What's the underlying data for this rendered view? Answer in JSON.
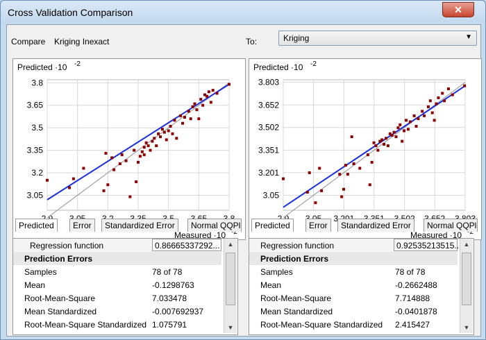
{
  "window": {
    "title": "Cross Validation Comparison",
    "close_label": "✕"
  },
  "compare": {
    "label": "Compare",
    "value": "Kriging Inexact"
  },
  "to": {
    "label": "To:",
    "value": "Kriging"
  },
  "tabs": [
    "Predicted",
    "Error",
    "Standardized Error",
    "Normal QQPlot"
  ],
  "colors": {
    "points": "#8b0000",
    "regression": "#1a2ee0",
    "reference": "#a0a0a0",
    "accent": "#6d8fb5"
  },
  "chart_data": [
    {
      "type": "scatter",
      "ylabel": "Predicted ·10",
      "ylabel_exp": "-2",
      "xlabel": "Measured ·10",
      "xlabel_exp": "-2",
      "xticks": [
        "2.9",
        "3.05",
        "3.2",
        "3.35",
        "3.5",
        "3.65",
        "3.8"
      ],
      "yticks": [
        "3.05",
        "3.2",
        "3.35",
        "3.5",
        "3.65",
        "3.8"
      ],
      "xlim": [
        2.9,
        3.8
      ],
      "ylim": [
        2.95,
        3.82
      ],
      "regression": {
        "x": [
          2.9,
          3.8
        ],
        "y": [
          3.02,
          3.79
        ]
      },
      "points": [
        [
          2.9,
          3.15
        ],
        [
          3.01,
          3.1
        ],
        [
          3.03,
          3.16
        ],
        [
          3.08,
          3.23
        ],
        [
          3.18,
          3.08
        ],
        [
          3.19,
          3.33
        ],
        [
          3.2,
          3.12
        ],
        [
          3.22,
          3.3
        ],
        [
          3.23,
          3.22
        ],
        [
          3.26,
          3.26
        ],
        [
          3.27,
          3.32
        ],
        [
          3.29,
          3.28
        ],
        [
          3.31,
          3.04
        ],
        [
          3.33,
          3.35
        ],
        [
          3.34,
          3.14
        ],
        [
          3.35,
          3.27
        ],
        [
          3.36,
          3.31
        ],
        [
          3.37,
          3.34
        ],
        [
          3.38,
          3.37
        ],
        [
          3.38,
          3.32
        ],
        [
          3.39,
          3.4
        ],
        [
          3.4,
          3.38
        ],
        [
          3.41,
          3.35
        ],
        [
          3.42,
          3.41
        ],
        [
          3.43,
          3.43
        ],
        [
          3.44,
          3.38
        ],
        [
          3.45,
          3.46
        ],
        [
          3.46,
          3.44
        ],
        [
          3.47,
          3.49
        ],
        [
          3.48,
          3.47
        ],
        [
          3.49,
          3.42
        ],
        [
          3.5,
          3.48
        ],
        [
          3.51,
          3.51
        ],
        [
          3.52,
          3.46
        ],
        [
          3.53,
          3.55
        ],
        [
          3.54,
          3.43
        ],
        [
          3.56,
          3.58
        ],
        [
          3.57,
          3.53
        ],
        [
          3.58,
          3.57
        ],
        [
          3.6,
          3.61
        ],
        [
          3.61,
          3.56
        ],
        [
          3.62,
          3.64
        ],
        [
          3.63,
          3.66
        ],
        [
          3.64,
          3.62
        ],
        [
          3.65,
          3.56
        ],
        [
          3.66,
          3.69
        ],
        [
          3.67,
          3.65
        ],
        [
          3.68,
          3.72
        ],
        [
          3.69,
          3.71
        ],
        [
          3.7,
          3.74
        ],
        [
          3.71,
          3.67
        ],
        [
          3.72,
          3.75
        ],
        [
          3.74,
          3.73
        ],
        [
          3.8,
          3.79
        ]
      ]
    },
    {
      "type": "scatter",
      "ylabel": "Predicted ·10",
      "ylabel_exp": "-2",
      "xlabel": "Measured ·10",
      "xlabel_exp": "-2",
      "xticks": [
        "2.9",
        "3.05",
        "3.201",
        "3.351",
        "3.502",
        "3.652",
        "3.803"
      ],
      "yticks": [
        "3.05",
        "3.201",
        "3.351",
        "3.502",
        "3.652",
        "3.803"
      ],
      "xlim": [
        2.9,
        3.803
      ],
      "ylim": [
        2.95,
        3.82
      ],
      "regression": {
        "x": [
          2.9,
          3.803
        ],
        "y": [
          2.97,
          3.78
        ]
      },
      "points": [
        [
          2.9,
          3.16
        ],
        [
          3.02,
          3.07
        ],
        [
          3.03,
          3.2
        ],
        [
          3.06,
          3.0
        ],
        [
          3.08,
          3.23
        ],
        [
          3.09,
          3.08
        ],
        [
          3.18,
          3.19
        ],
        [
          3.19,
          3.04
        ],
        [
          3.2,
          3.09
        ],
        [
          3.21,
          3.25
        ],
        [
          3.22,
          3.19
        ],
        [
          3.24,
          3.44
        ],
        [
          3.25,
          3.26
        ],
        [
          3.28,
          3.23
        ],
        [
          3.32,
          3.32
        ],
        [
          3.33,
          3.12
        ],
        [
          3.34,
          3.27
        ],
        [
          3.35,
          3.4
        ],
        [
          3.36,
          3.38
        ],
        [
          3.37,
          3.35
        ],
        [
          3.38,
          3.41
        ],
        [
          3.39,
          3.42
        ],
        [
          3.4,
          3.39
        ],
        [
          3.41,
          3.43
        ],
        [
          3.42,
          3.38
        ],
        [
          3.43,
          3.46
        ],
        [
          3.44,
          3.45
        ],
        [
          3.45,
          3.47
        ],
        [
          3.46,
          3.44
        ],
        [
          3.47,
          3.5
        ],
        [
          3.48,
          3.52
        ],
        [
          3.49,
          3.41
        ],
        [
          3.5,
          3.48
        ],
        [
          3.51,
          3.55
        ],
        [
          3.52,
          3.49
        ],
        [
          3.53,
          3.54
        ],
        [
          3.55,
          3.58
        ],
        [
          3.56,
          3.51
        ],
        [
          3.57,
          3.56
        ],
        [
          3.59,
          3.61
        ],
        [
          3.6,
          3.58
        ],
        [
          3.62,
          3.64
        ],
        [
          3.63,
          3.68
        ],
        [
          3.64,
          3.6
        ],
        [
          3.65,
          3.55
        ],
        [
          3.66,
          3.66
        ],
        [
          3.67,
          3.7
        ],
        [
          3.69,
          3.73
        ],
        [
          3.7,
          3.68
        ],
        [
          3.72,
          3.76
        ],
        [
          3.74,
          3.72
        ],
        [
          3.8,
          3.78
        ]
      ]
    }
  ],
  "stats_left": {
    "regression_label": "Regression function",
    "regression_value": "0.86665337292...",
    "section": "Prediction Errors",
    "rows": [
      {
        "k": "Samples",
        "v": "78 of 78"
      },
      {
        "k": "Mean",
        "v": "-0.1298763"
      },
      {
        "k": "Root-Mean-Square",
        "v": "7.033478"
      },
      {
        "k": "Mean Standardized",
        "v": "-0.007692937"
      },
      {
        "k": "Root-Mean-Square Standardized",
        "v": "1.075791"
      }
    ]
  },
  "stats_right": {
    "regression_label": "Regression function",
    "regression_value": "0.92535213515...",
    "section": "Prediction Errors",
    "rows": [
      {
        "k": "Samples",
        "v": "78 of 78"
      },
      {
        "k": "Mean",
        "v": "-0.2662488"
      },
      {
        "k": "Root-Mean-Square",
        "v": "7.714888"
      },
      {
        "k": "Mean Standardized",
        "v": "-0.0401878"
      },
      {
        "k": "Root-Mean-Square Standardized",
        "v": "2.415427"
      }
    ]
  }
}
